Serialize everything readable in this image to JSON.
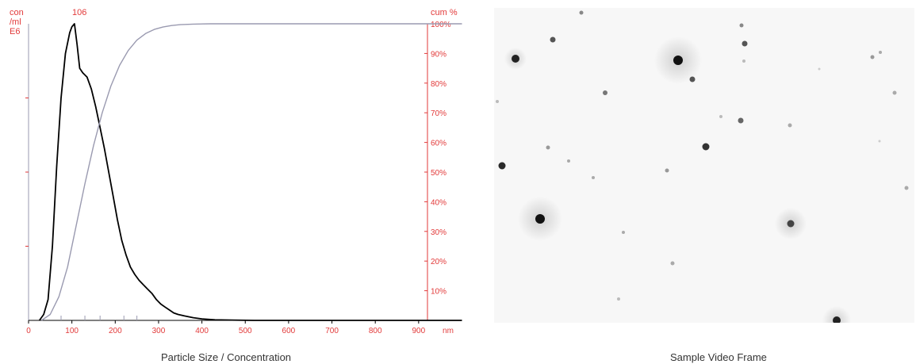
{
  "chart_data": {
    "type": "line",
    "peak_label": "106",
    "left_axis_label": [
      "con",
      "/ml",
      "E6"
    ],
    "right_axis_label": "cum %",
    "x_unit": "nm",
    "xlim": [
      0,
      1000
    ],
    "x_ticks": [
      0,
      100,
      200,
      300,
      400,
      500,
      600,
      700,
      800,
      900
    ],
    "x_tick_labels": [
      "0",
      "100",
      "200",
      "300",
      "400",
      "500",
      "600",
      "700",
      "800",
      "900"
    ],
    "right_ticks": [
      10,
      20,
      30,
      40,
      50,
      60,
      70,
      80,
      90,
      100
    ],
    "right_tick_labels": [
      "10%",
      "20%",
      "30%",
      "40%",
      "50%",
      "60%",
      "70%",
      "80%",
      "90%",
      "100%"
    ],
    "ylim_left": [
      0,
      1
    ],
    "ylim_right": [
      0,
      100
    ],
    "caption": "Particle Size / Concentration",
    "series": [
      {
        "axis": "left",
        "color": "#000000",
        "x": [
          25,
          35,
          45,
          55,
          65,
          75,
          85,
          95,
          100,
          106,
          112,
          118,
          125,
          135,
          145,
          155,
          165,
          175,
          185,
          195,
          205,
          215,
          225,
          235,
          245,
          255,
          265,
          275,
          285,
          295,
          305,
          315,
          325,
          335,
          345,
          360,
          380,
          400,
          430,
          470,
          520,
          600,
          700,
          800,
          900,
          1000
        ],
        "values": [
          0.0,
          0.02,
          0.07,
          0.25,
          0.52,
          0.75,
          0.9,
          0.97,
          0.99,
          1.0,
          0.93,
          0.85,
          0.835,
          0.82,
          0.78,
          0.72,
          0.65,
          0.58,
          0.5,
          0.42,
          0.34,
          0.27,
          0.22,
          0.18,
          0.155,
          0.135,
          0.12,
          0.105,
          0.09,
          0.07,
          0.055,
          0.045,
          0.035,
          0.025,
          0.02,
          0.015,
          0.009,
          0.005,
          0.002,
          0.001,
          0.0,
          0.0,
          0.0,
          0.0,
          0.0,
          0.0
        ]
      },
      {
        "axis": "right",
        "color": "#9a9ab0",
        "x": [
          30,
          50,
          70,
          90,
          110,
          130,
          150,
          170,
          190,
          210,
          230,
          250,
          270,
          290,
          310,
          330,
          350,
          380,
          420,
          480,
          600,
          1000
        ],
        "values": [
          0,
          2,
          8,
          18,
          32,
          46,
          59,
          70,
          79,
          86,
          91,
          94.5,
          96.7,
          98.1,
          98.9,
          99.4,
          99.7,
          99.9,
          100,
          100,
          100,
          100
        ]
      }
    ]
  },
  "video_frame": {
    "caption": "Sample Video Frame"
  }
}
